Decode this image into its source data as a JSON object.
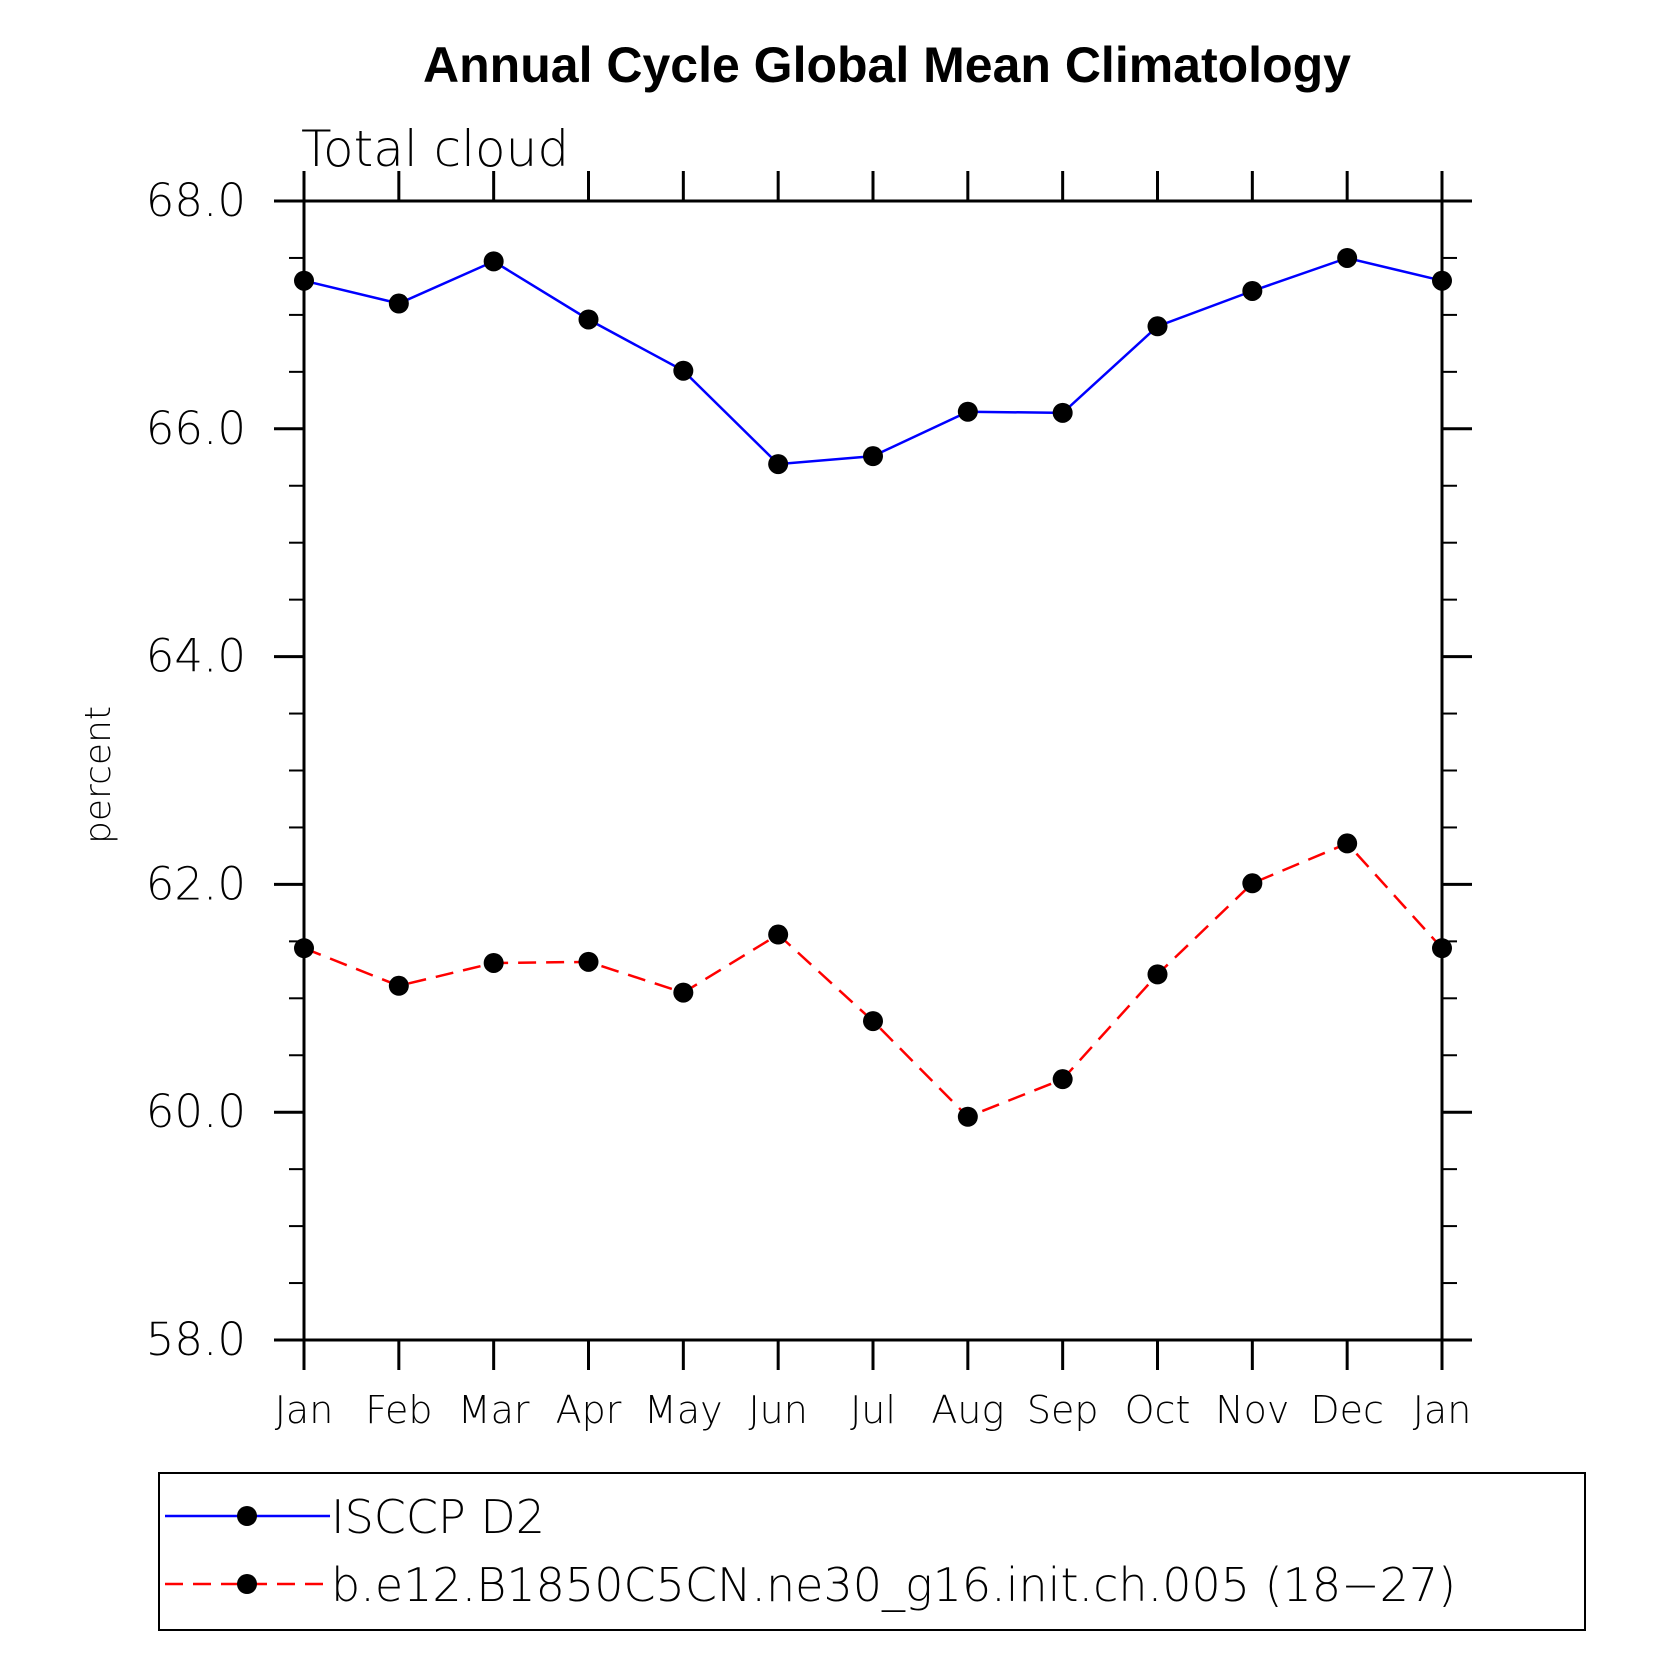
{
  "chart_data": {
    "type": "line",
    "title": "Annual Cycle Global Mean Climatology",
    "subtitle": "Total cloud",
    "xlabel": "",
    "ylabel": "percent",
    "ylim": [
      58.0,
      68.0
    ],
    "yticks": [
      "58.0",
      "60.0",
      "62.0",
      "64.0",
      "66.0",
      "68.0"
    ],
    "categories": [
      "Jan",
      "Feb",
      "Mar",
      "Apr",
      "May",
      "Jun",
      "Jul",
      "Aug",
      "Sep",
      "Oct",
      "Nov",
      "Dec",
      "Jan"
    ],
    "series": [
      {
        "name": "ISCCP D2",
        "color": "#0000ff",
        "dash": "solid",
        "values": [
          67.3,
          67.1,
          67.47,
          66.96,
          66.51,
          65.69,
          65.76,
          66.15,
          66.14,
          66.9,
          67.21,
          67.5,
          67.3
        ]
      },
      {
        "name": "b.e12.B1850C5CN.ne30_g16.init.ch.005 (18−27)",
        "color": "#ff0000",
        "dash": "dashed",
        "values": [
          61.44,
          61.11,
          61.31,
          61.32,
          61.05,
          61.56,
          60.8,
          59.96,
          60.29,
          61.21,
          62.01,
          62.36,
          61.44
        ]
      }
    ],
    "legend": "bottom"
  }
}
